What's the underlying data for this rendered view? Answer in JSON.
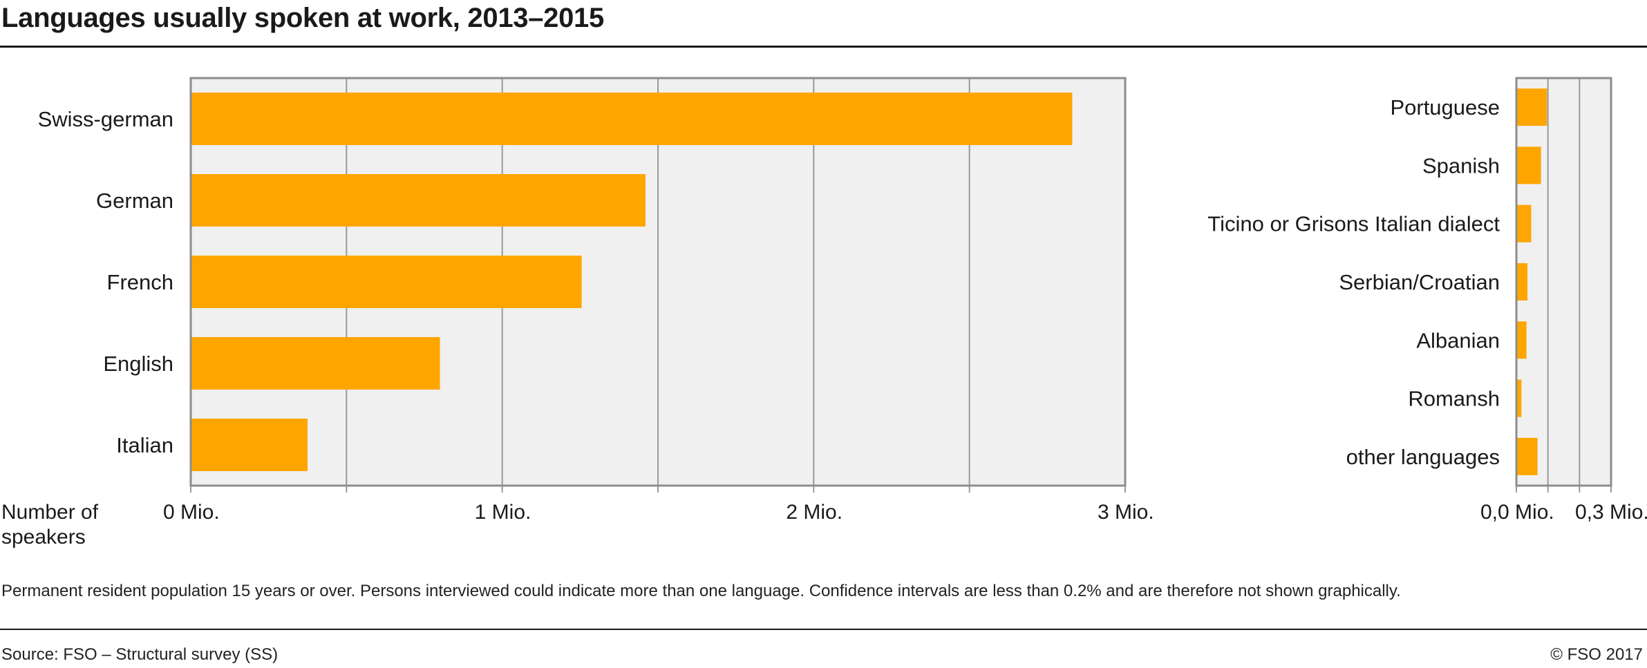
{
  "title": "Languages usually spoken at work, 2013–2015",
  "note": "Permanent resident population 15 years or over. Persons interviewed could indicate more than one language. Confidence intervals are less than 0.2% and are therefore not shown graphically.",
  "source": "Source: FSO – Structural survey (SS)",
  "copyright": "© FSO 2017",
  "colors": {
    "bar": "#FFA500",
    "plot_bg": "#F0F0F0",
    "grid": "#999999",
    "frame": "#8C8C8C"
  },
  "chart_data": [
    {
      "type": "bar",
      "orientation": "horizontal",
      "categories": [
        "Swiss-german",
        "German",
        "French",
        "English",
        "Italian"
      ],
      "values": [
        2830000,
        1460000,
        1255000,
        800000,
        375000
      ],
      "xlim": [
        0,
        3000000
      ],
      "ticks": [
        0,
        1000000,
        2000000,
        3000000
      ],
      "tick_labels": [
        "0 Mio.",
        "1 Mio.",
        "2 Mio.",
        "3 Mio."
      ],
      "xlabel_lines": [
        "Number of",
        "speakers"
      ],
      "grid": true
    },
    {
      "type": "bar",
      "orientation": "horizontal",
      "categories": [
        "Portuguese",
        "Spanish",
        "Ticino or Grisons Italian dialect",
        "Serbian/Croatian",
        "Albanian",
        "Romansh",
        "other languages"
      ],
      "values": [
        97000,
        78000,
        47000,
        35000,
        32000,
        16000,
        67000
      ],
      "xlim": [
        0,
        300000
      ],
      "ticks": [
        0,
        300000
      ],
      "tick_labels": [
        "0,0 Mio.",
        "0,3 Mio."
      ],
      "grid": true
    }
  ]
}
